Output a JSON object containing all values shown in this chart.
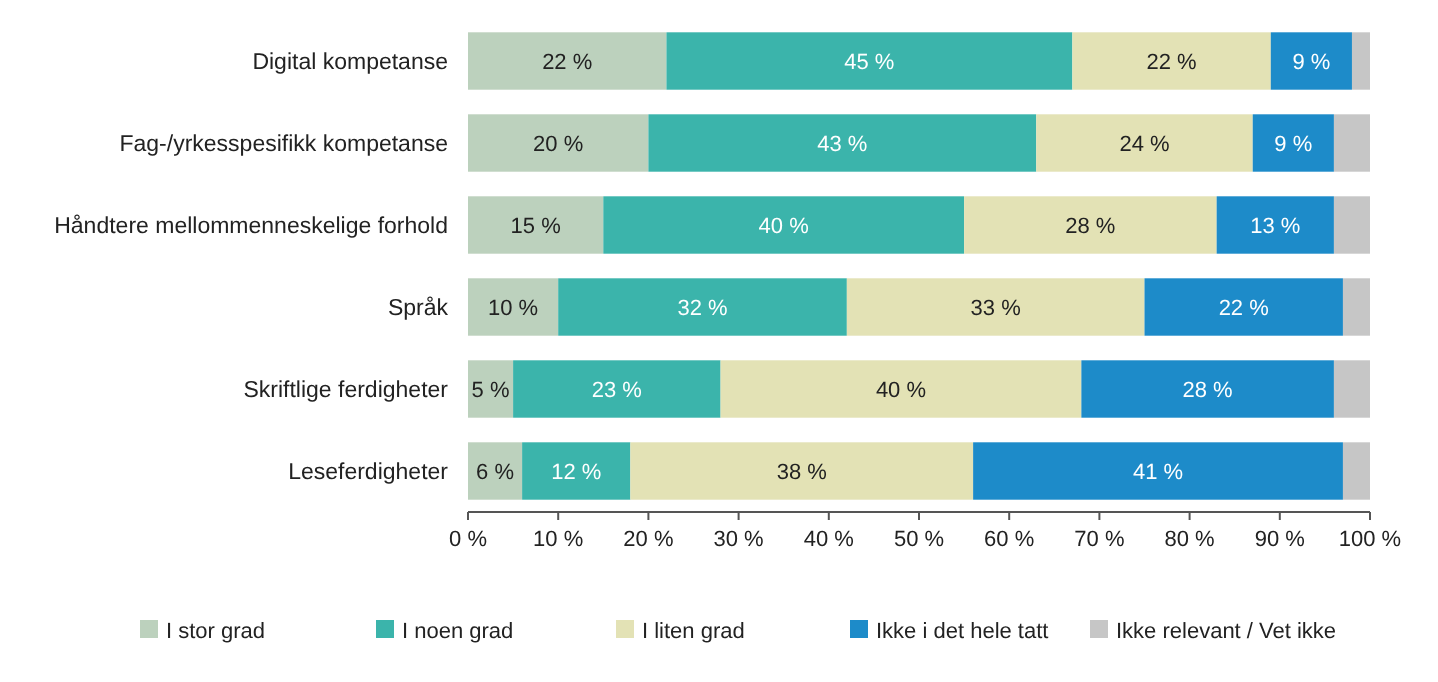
{
  "chart_data": {
    "type": "bar",
    "orientation": "horizontal",
    "stacked": true,
    "categories": [
      "Digital kompetanse",
      "Fag-/yrkesspesifikk kompetanse",
      "Håndtere mellommenneskelige forhold",
      "Språk",
      "Skriftlige ferdigheter",
      "Leseferdigheter"
    ],
    "series": [
      {
        "name": "I stor grad",
        "color": "#bcd1bd",
        "values": [
          22,
          20,
          15,
          10,
          5,
          6
        ],
        "value_labels": [
          "22 %",
          "20 %",
          "15 %",
          "10 %",
          "5 %",
          "6 %"
        ]
      },
      {
        "name": "I noen grad",
        "color": "#3bb4ab",
        "values": [
          45,
          43,
          40,
          32,
          23,
          12
        ],
        "value_labels": [
          "45 %",
          "43 %",
          "40 %",
          "32 %",
          "23 %",
          "12 %"
        ]
      },
      {
        "name": "I liten grad",
        "color": "#e3e2b5",
        "values": [
          22,
          24,
          28,
          33,
          40,
          38
        ],
        "value_labels": [
          "22 %",
          "24 %",
          "28 %",
          "33 %",
          "40 %",
          "38 %"
        ]
      },
      {
        "name": "Ikke i det hele tatt",
        "color": "#1d8bc9",
        "values": [
          9,
          9,
          13,
          22,
          28,
          41
        ],
        "value_labels": [
          "9 %",
          "9 %",
          "13 %",
          "22 %",
          "28 %",
          "41 %"
        ]
      },
      {
        "name": "Ikke relevant / Vet ikke",
        "color": "#c6c6c6",
        "values": [
          2,
          4,
          4,
          3,
          4,
          3
        ]
      }
    ],
    "xlim": [
      0,
      100
    ],
    "xticks": [
      {
        "value": 0,
        "label": "0 %"
      },
      {
        "value": 10,
        "label": "10 %"
      },
      {
        "value": 20,
        "label": "20 %"
      },
      {
        "value": 30,
        "label": "30 %"
      },
      {
        "value": 40,
        "label": "40 %"
      },
      {
        "value": 50,
        "label": "50 %"
      },
      {
        "value": 60,
        "label": "60 %"
      },
      {
        "value": 70,
        "label": "70 %"
      },
      {
        "value": 80,
        "label": "80 %"
      },
      {
        "value": 90,
        "label": "90 %"
      },
      {
        "value": 100,
        "label": "100 %"
      }
    ],
    "legend": "bottom",
    "grid": false
  }
}
